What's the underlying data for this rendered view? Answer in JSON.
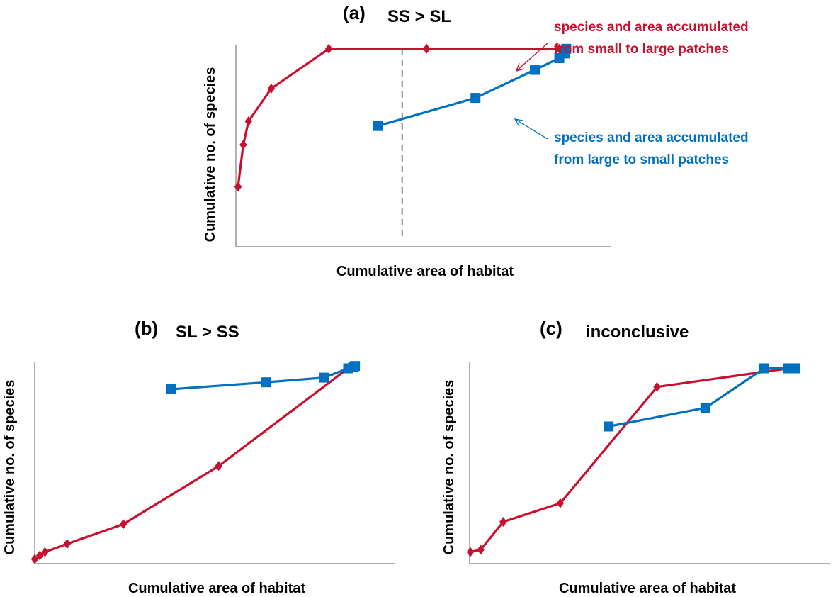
{
  "colors": {
    "small_to_large": "#c8102e",
    "large_to_small": "#0070c0",
    "axis": "#909090",
    "divider": "#7f7f7f"
  },
  "chart_data": [
    {
      "id": "a",
      "type": "line",
      "panel_letter": "(a)",
      "title": "SS > SL",
      "xlabel": "Cumulative area of habitat",
      "ylabel": "Cumulative no. of species",
      "xlim": [
        0,
        100
      ],
      "ylim": [
        0,
        100
      ],
      "grid": false,
      "vertical_marker_x": 47,
      "series": [
        {
          "key": "small_to_large",
          "marker": "diamond",
          "x": [
            0,
            1.5,
            3,
            9.5,
            26,
            54,
            92
          ],
          "y": [
            25,
            43,
            53,
            67,
            84,
            84,
            84
          ]
        },
        {
          "key": "large_to_small",
          "marker": "square",
          "x": [
            40,
            68,
            85,
            92,
            93.5,
            94
          ],
          "y": [
            51,
            63,
            75,
            80,
            82,
            84
          ]
        }
      ],
      "annotations": [
        {
          "lines": [
            "species and area accumulated",
            "from small to large patches"
          ],
          "color_key": "small_to_large"
        },
        {
          "lines": [
            "species and area accumulated",
            "from large to small patches"
          ],
          "color_key": "large_to_small"
        }
      ]
    },
    {
      "id": "b",
      "type": "line",
      "panel_letter": "(b)",
      "title": "SL > SS",
      "xlabel": "Cumulative area of habitat",
      "ylabel": "Cumulative no. of species",
      "xlim": [
        0,
        100
      ],
      "ylim": [
        0,
        100
      ],
      "grid": false,
      "series": [
        {
          "key": "small_to_large",
          "marker": "diamond",
          "x": [
            0,
            1.5,
            3,
            9.5,
            26,
            54,
            92
          ],
          "y": [
            2,
            3.5,
            5,
            8.5,
            17,
            42,
            84
          ]
        },
        {
          "key": "large_to_small",
          "marker": "square",
          "x": [
            40,
            68,
            85,
            92,
            93.5,
            94
          ],
          "y": [
            75,
            78,
            80,
            84,
            84.5,
            85
          ]
        }
      ]
    },
    {
      "id": "c",
      "type": "line",
      "panel_letter": "(c)",
      "title": "inconclusive",
      "xlabel": "Cumulative area of habitat",
      "ylabel": "Cumulative no. of species",
      "xlim": [
        0,
        100
      ],
      "ylim": [
        0,
        100
      ],
      "grid": false,
      "series": [
        {
          "key": "small_to_large",
          "marker": "diamond",
          "x": [
            0,
            3,
            9.5,
            26,
            54,
            92
          ],
          "y": [
            5,
            6,
            18,
            26,
            76,
            84
          ]
        },
        {
          "key": "large_to_small",
          "marker": "square",
          "x": [
            40,
            68,
            85,
            92,
            93.5,
            94
          ],
          "y": [
            59,
            67,
            84,
            84,
            84,
            84
          ]
        }
      ]
    }
  ]
}
